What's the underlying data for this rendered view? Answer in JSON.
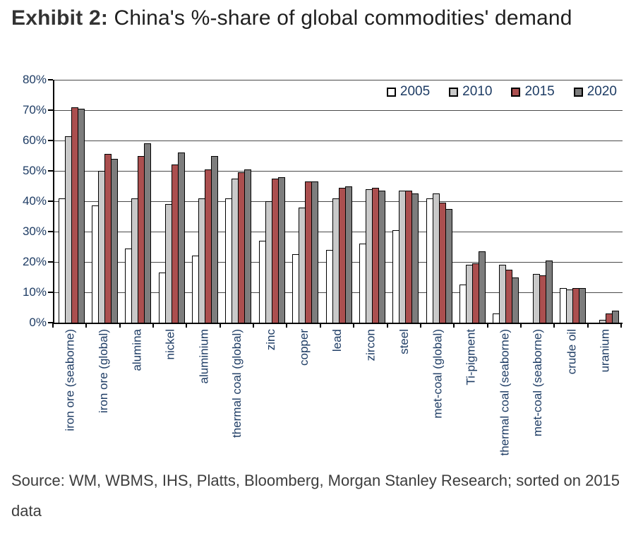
{
  "page": {
    "title_label": "Exhibit 2:",
    "title_text": " China's %-share of global commodities' demand",
    "source_text": "Source: WM, WBMS, IHS, Platts, Bloomberg, Morgan Stanley Research; sorted on 2015 data"
  },
  "chart_data": {
    "type": "bar",
    "title": "Exhibit 2: China's %-share of global commodities' demand",
    "xlabel": "",
    "ylabel": "",
    "ylim": [
      0,
      80
    ],
    "y_ticks": [
      "0%",
      "10%",
      "20%",
      "30%",
      "40%",
      "50%",
      "60%",
      "70%",
      "80%"
    ],
    "grid": true,
    "legend_position": "top-right",
    "sort_note": "sorted on 2015 data",
    "categories": [
      "iron ore (seaborne)",
      "iron ore (global)",
      "alumina",
      "nickel",
      "aluminium",
      "thermal coal (global)",
      "zinc",
      "copper",
      "lead",
      "zircon",
      "steel",
      "met-coal (global)",
      "Ti-pigment",
      "thermal coal (seaborne)",
      "met-coal (seaborne)",
      "crude oil",
      "uranium"
    ],
    "series": [
      {
        "name": "2005",
        "color": "#ffffff",
        "values": [
          41,
          38.5,
          24.5,
          16.5,
          22,
          41,
          27,
          22.5,
          24,
          26,
          30.5,
          41,
          12.5,
          3,
          null,
          11.5,
          null
        ]
      },
      {
        "name": "2010",
        "color": "#c9c9c9",
        "values": [
          61.5,
          50,
          41,
          39,
          41,
          47.5,
          40,
          38,
          41,
          44,
          43.5,
          42.5,
          19,
          19,
          16,
          11,
          1
        ]
      },
      {
        "name": "2015",
        "color": "#ab4f4f",
        "values": [
          71,
          55.5,
          55,
          52,
          50.5,
          49.5,
          47.5,
          46.5,
          44.5,
          44.5,
          43.5,
          39.5,
          19.5,
          17.5,
          15.5,
          11.5,
          3
        ]
      },
      {
        "name": "2020",
        "color": "#7d7d7d",
        "values": [
          70.5,
          54,
          59,
          56,
          55,
          50.5,
          48,
          46.5,
          45,
          43.5,
          42.5,
          37.5,
          23.5,
          15,
          20.5,
          11.5,
          4
        ]
      }
    ],
    "axis_text_color": "#1e3c64",
    "bar_border_color": "#000000"
  }
}
